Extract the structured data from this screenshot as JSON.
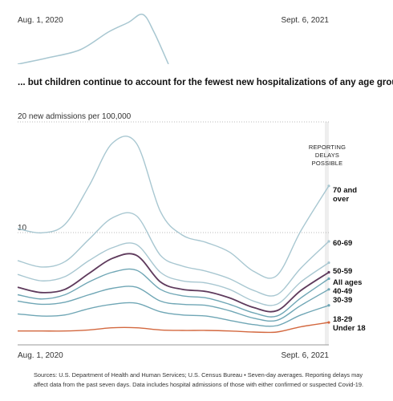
{
  "top_panel": {
    "start_label": "Aug. 1, 2020",
    "end_label": "Sept. 6, 2021",
    "note": "Top panel cropped; only the peak of the leading series is visible"
  },
  "heading": "... but children continue to account for the fewest new hospitalizations of any age group.",
  "unit_label": "20 new admissions per 100,000",
  "delay_note": [
    "REPORTING",
    "DELAYS",
    "POSSIBLE"
  ],
  "tick_10": "10",
  "x_start_label": "Aug. 1, 2020",
  "x_end_label": "Sept. 6, 2021",
  "source": [
    "Sources: U.S. Department of Health and Human Services; U.S. Census Bureau  •  Seven-day averages. Reporting delays may",
    "affect data from the past seven days. Data includes hospital admissions of those with either confirmed or suspected Covid-19."
  ],
  "colors": {
    "light": "#a8c7d1",
    "mid": "#6fa6b5",
    "all_ages": "#5e3a5c",
    "under18": "#d3683f",
    "grid": "#bbbbbb",
    "axis": "#999999",
    "delay_band": "#eeeeee"
  },
  "chart_data": {
    "type": "line",
    "title": "... but children continue to account for the fewest new hospitalizations of any age group.",
    "ylabel": "20 new admissions per 100,000",
    "xlim": [
      "2020-08-01",
      "2021-09-06"
    ],
    "ylim": [
      0,
      20
    ],
    "yticks": [
      10,
      20
    ],
    "x": [
      "2020-08-01",
      "2020-09-01",
      "2020-10-01",
      "2020-11-01",
      "2020-12-01",
      "2021-01-01",
      "2021-02-01",
      "2021-03-01",
      "2021-04-01",
      "2021-05-01",
      "2021-06-01",
      "2021-07-01",
      "2021-08-01",
      "2021-09-06"
    ],
    "series": [
      {
        "name": "70 and over",
        "color": "#a8c7d1",
        "values": [
          10.0,
          9.6,
          10.4,
          14.0,
          18.0,
          18.0,
          11.6,
          9.4,
          8.7,
          7.8,
          6.0,
          5.6,
          9.8,
          14.0
        ]
      },
      {
        "name": "60-69",
        "color": "#a8c7d1",
        "values": [
          7.0,
          6.4,
          6.9,
          9.0,
          11.0,
          11.2,
          7.5,
          6.5,
          6.0,
          5.3,
          4.2,
          3.8,
          6.3,
          8.8
        ]
      },
      {
        "name": "50-59",
        "color": "#a8c7d1",
        "values": [
          5.7,
          5.1,
          5.5,
          7.0,
          8.2,
          8.5,
          5.9,
          5.1,
          4.9,
          4.3,
          3.2,
          2.9,
          5.0,
          6.8
        ]
      },
      {
        "name": "All ages",
        "color": "#5e3a5c",
        "values": [
          4.5,
          4.0,
          4.3,
          5.8,
          7.2,
          7.5,
          5.0,
          4.3,
          4.1,
          3.5,
          2.6,
          2.3,
          4.2,
          5.9
        ]
      },
      {
        "name": "40-49",
        "color": "#6fa6b5",
        "values": [
          3.8,
          3.4,
          3.8,
          5.0,
          5.9,
          6.1,
          4.3,
          3.7,
          3.5,
          2.9,
          2.1,
          1.8,
          3.5,
          5.3
        ]
      },
      {
        "name": "30-39",
        "color": "#6fa6b5",
        "values": [
          3.2,
          2.9,
          3.1,
          3.8,
          4.4,
          4.5,
          3.2,
          2.9,
          2.8,
          2.3,
          1.6,
          1.4,
          2.8,
          4.3
        ]
      },
      {
        "name": "18-29",
        "color": "#6fa6b5",
        "values": [
          2.0,
          1.8,
          1.9,
          2.5,
          2.9,
          3.0,
          2.2,
          1.9,
          1.8,
          1.4,
          1.0,
          0.9,
          1.9,
          2.8
        ]
      },
      {
        "name": "Under 18",
        "color": "#d3683f",
        "values": [
          0.4,
          0.4,
          0.4,
          0.5,
          0.7,
          0.7,
          0.5,
          0.45,
          0.45,
          0.4,
          0.3,
          0.3,
          0.8,
          1.2
        ]
      }
    ],
    "annotations": [
      "REPORTING DELAYS POSSIBLE"
    ],
    "grid": true,
    "legend": "direct labels at right"
  }
}
